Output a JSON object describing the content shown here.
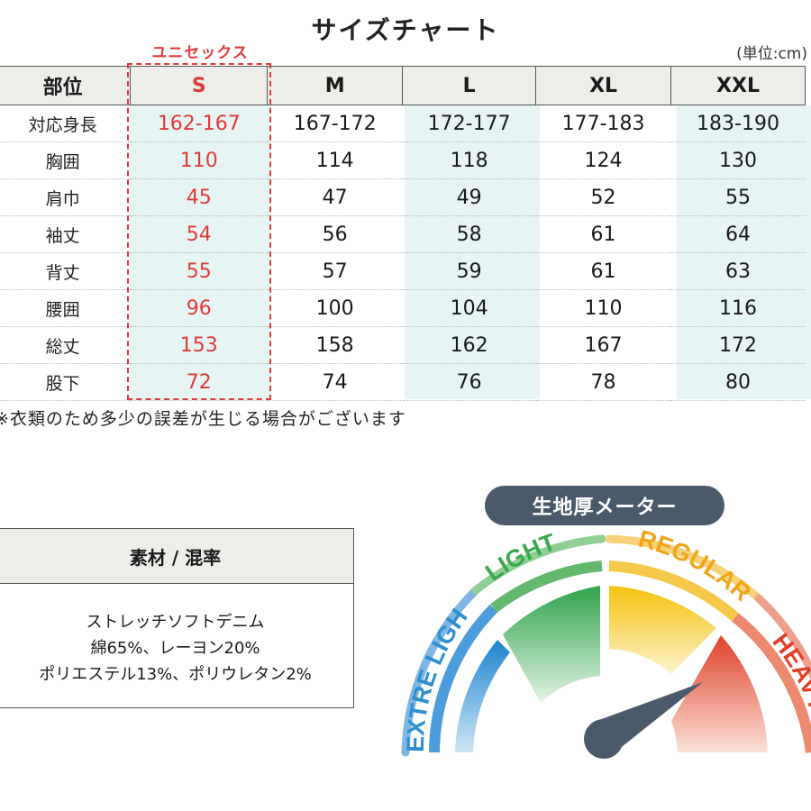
{
  "title": "サイズチャート",
  "unit_note": "(単位:cm)",
  "unisex_label": "ユニセックス",
  "table": {
    "header_label": "部位",
    "sizes": [
      "S",
      "M",
      "L",
      "XL",
      "XXL"
    ],
    "rows": [
      {
        "label": "対応身長",
        "values": [
          "162-167",
          "167-172",
          "172-177",
          "177-183",
          "183-190"
        ]
      },
      {
        "label": "胸囲",
        "values": [
          "110",
          "114",
          "118",
          "124",
          "130"
        ]
      },
      {
        "label": "肩巾",
        "values": [
          "45",
          "47",
          "49",
          "52",
          "55"
        ]
      },
      {
        "label": "袖丈",
        "values": [
          "54",
          "56",
          "58",
          "61",
          "64"
        ]
      },
      {
        "label": "背丈",
        "values": [
          "55",
          "57",
          "59",
          "61",
          "63"
        ]
      },
      {
        "label": "腰囲",
        "values": [
          "96",
          "100",
          "104",
          "110",
          "116"
        ]
      },
      {
        "label": "総丈",
        "values": [
          "153",
          "158",
          "162",
          "167",
          "172"
        ]
      },
      {
        "label": "股下",
        "values": [
          "72",
          "74",
          "76",
          "78",
          "80"
        ]
      }
    ]
  },
  "footnote": "※衣類のため多少の誤差が生じる場合がございます",
  "material": {
    "header": "素材 / 混率",
    "lines": [
      "ストレッチソフトデニム",
      "綿65%、レーヨン20%",
      "ポリエステル13%、ポリウレタン2%"
    ]
  },
  "meter": {
    "title": "生地厚メーター",
    "levels": [
      {
        "label": "EXTRE LIGHT",
        "color": "#2e8fd0"
      },
      {
        "label": "LIGHT",
        "color": "#3aa94a"
      },
      {
        "label": "REGULAR",
        "color": "#f2a516"
      },
      {
        "label": "HEAVY",
        "color": "#e0402a"
      }
    ],
    "selected": "HEAVY"
  },
  "colors": {
    "accent": "#e03a3a",
    "shade": "#e6f4f4",
    "header_bg": "#ededea",
    "needle": "#4b5a6a"
  }
}
